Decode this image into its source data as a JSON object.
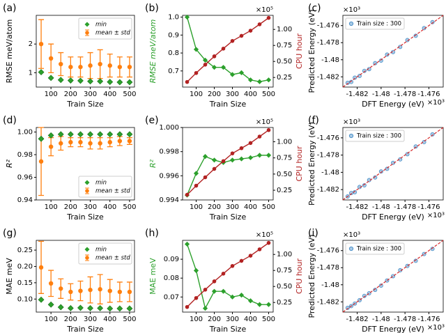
{
  "chart_data": [
    {
      "type": "errorbar",
      "panel_label": "(a)",
      "xlabel": "Train Size",
      "ylabel": "RMSE meV/atom",
      "x": [
        50,
        100,
        150,
        200,
        250,
        300,
        350,
        400,
        450,
        500
      ],
      "xlim": [
        25,
        525
      ],
      "xticks": [
        100,
        200,
        300,
        400,
        500
      ],
      "ylim": [
        0.5,
        3.0
      ],
      "yticks": [
        1,
        2
      ],
      "legend": "upper right",
      "series": [
        {
          "name": "min",
          "color": "#2ca02c",
          "values": [
            1.02,
            0.82,
            0.75,
            0.73,
            0.72,
            0.7,
            0.7,
            0.68,
            0.67,
            0.67
          ]
        },
        {
          "name": "mean ± std",
          "color": "#ff7f0e",
          "values": [
            2.0,
            1.5,
            1.3,
            1.2,
            1.2,
            1.25,
            1.3,
            1.25,
            1.2,
            1.2
          ],
          "errors": [
            0.85,
            0.5,
            0.4,
            0.35,
            0.35,
            0.45,
            0.5,
            0.4,
            0.35,
            0.35
          ]
        }
      ]
    },
    {
      "type": "dual_line",
      "panel_label": "(b)",
      "xlabel": "Train Size",
      "ylabel": "RMSE meV/atom",
      "y2label": "CPU hour",
      "y2_offset_label": "×10⁵",
      "x": [
        50,
        100,
        150,
        200,
        250,
        300,
        350,
        400,
        450,
        500
      ],
      "xlim": [
        25,
        525
      ],
      "xticks": [
        100,
        200,
        300,
        400,
        500
      ],
      "ylim": [
        0.61,
        1.01
      ],
      "yticks": [
        0.7,
        0.8,
        0.9,
        {
          "value": 1.0,
          "label": "1.0"
        }
      ],
      "y2lim": [
        0.1,
        1.22
      ],
      "y2ticks": [
        0.25,
        {
          "value": 0.5,
          "label": "0.50"
        },
        0.75,
        {
          "value": 1.0,
          "label": "1.00"
        }
      ],
      "series": [
        {
          "color": "#2ca02c",
          "values": [
            1.0,
            0.82,
            0.76,
            0.72,
            0.72,
            0.68,
            0.69,
            0.65,
            0.64,
            0.65
          ]
        },
        {
          "color": "#b22222",
          "axis": "y2",
          "values": [
            0.18,
            0.32,
            0.45,
            0.58,
            0.7,
            0.82,
            0.9,
            0.98,
            1.08,
            1.18
          ]
        }
      ]
    },
    {
      "type": "scatter",
      "panel_label": "(c)",
      "xlabel": "DFT Energy (eV)",
      "ylabel": "Predicted Energy (eV)",
      "x_offset_label": "×10³",
      "y_offset_label": "×10³",
      "xlim": [
        -1.4832,
        -1.4748
      ],
      "xticks": [
        -1.482,
        -1.48,
        -1.478,
        -1.476
      ],
      "ylim": [
        -1.4832,
        -1.4748
      ],
      "yticks": [
        -1.482,
        -1.48,
        -1.478,
        -1.476
      ],
      "legend": "upper left",
      "x": [
        -1.4828,
        -1.4825,
        -1.4822,
        -1.4818,
        -1.4814,
        -1.481,
        -1.4805,
        -1.48,
        -1.4795,
        -1.479,
        -1.4784,
        -1.4778,
        -1.4771,
        -1.4764,
        -1.4757
      ],
      "series": [
        {
          "name": "Train size : 300",
          "color": "#4b8fc7",
          "values": [
            -1.4827,
            -1.4826,
            -1.4821,
            -1.4819,
            -1.4813,
            -1.4811,
            -1.4804,
            -1.4801,
            -1.4794,
            -1.4791,
            -1.4785,
            -1.4777,
            -1.4772,
            -1.4763,
            -1.4756
          ]
        }
      ]
    },
    {
      "type": "errorbar",
      "panel_label": "(d)",
      "xlabel": "Train Size",
      "ylabel": "R²",
      "x": [
        50,
        100,
        150,
        200,
        250,
        300,
        350,
        400,
        450,
        500
      ],
      "xlim": [
        25,
        525
      ],
      "xticks": [
        100,
        200,
        300,
        400,
        500
      ],
      "ylim": [
        0.94,
        1.004
      ],
      "yticks": [
        0.94,
        0.96,
        0.98,
        {
          "value": 1.0,
          "label": "1.00"
        }
      ],
      "legend": "lower right",
      "series": [
        {
          "name": "min",
          "color": "#2ca02c",
          "values": [
            0.994,
            0.997,
            0.998,
            0.998,
            0.998,
            0.998,
            0.998,
            0.998,
            0.998,
            0.998
          ]
        },
        {
          "name": "mean ± std",
          "color": "#ff7f0e",
          "values": [
            0.974,
            0.987,
            0.99,
            0.991,
            0.991,
            0.99,
            0.99,
            0.991,
            0.992,
            0.992
          ],
          "errors": [
            0.03,
            0.008,
            0.006,
            0.004,
            0.004,
            0.005,
            0.005,
            0.004,
            0.004,
            0.003
          ]
        }
      ]
    },
    {
      "type": "dual_line",
      "panel_label": "(e)",
      "xlabel": "Train Size",
      "ylabel": "R²",
      "y2label": "CPU hour",
      "y2_offset_label": "×10⁵",
      "x": [
        50,
        100,
        150,
        200,
        250,
        300,
        350,
        400,
        450,
        500
      ],
      "xlim": [
        25,
        525
      ],
      "xticks": [
        100,
        200,
        300,
        400,
        500
      ],
      "ylim": [
        0.994,
        1.0
      ],
      "yticks": [
        0.994,
        0.996,
        0.998,
        {
          "value": 1.0,
          "label": "1.000"
        }
      ],
      "y2lim": [
        0.1,
        1.22
      ],
      "y2ticks": [
        0.25,
        {
          "value": 0.5,
          "label": "0.50"
        },
        0.75,
        {
          "value": 1.0,
          "label": "1.00"
        }
      ],
      "series": [
        {
          "color": "#2ca02c",
          "values": [
            0.9944,
            0.9962,
            0.9976,
            0.9973,
            0.9971,
            0.9973,
            0.9974,
            0.9975,
            0.9977,
            0.9977
          ]
        },
        {
          "color": "#b22222",
          "axis": "y2",
          "values": [
            0.18,
            0.32,
            0.45,
            0.58,
            0.7,
            0.82,
            0.9,
            0.98,
            1.08,
            1.18
          ]
        }
      ]
    },
    {
      "type": "scatter",
      "panel_label": "(f)",
      "xlabel": "DFT Energy (eV)",
      "ylabel": "Predicted Energy (eV)",
      "x_offset_label": "×10³",
      "y_offset_label": "×10³",
      "xlim": [
        -1.4832,
        -1.4748
      ],
      "xticks": [
        -1.482,
        -1.48,
        -1.478,
        -1.476
      ],
      "ylim": [
        -1.4832,
        -1.4748
      ],
      "yticks": [
        -1.482,
        -1.48,
        -1.478,
        -1.476
      ],
      "legend": "upper left",
      "x": [
        -1.4828,
        -1.4825,
        -1.4822,
        -1.4818,
        -1.4814,
        -1.481,
        -1.4805,
        -1.48,
        -1.4795,
        -1.479,
        -1.4784,
        -1.4778,
        -1.4771,
        -1.4764,
        -1.4757
      ],
      "series": [
        {
          "name": "Train size : 300",
          "color": "#4b8fc7",
          "values": [
            -1.4828,
            -1.4824,
            -1.4823,
            -1.4817,
            -1.4815,
            -1.4809,
            -1.4806,
            -1.4799,
            -1.4796,
            -1.4789,
            -1.4785,
            -1.4779,
            -1.477,
            -1.4765,
            -1.4756
          ]
        }
      ]
    },
    {
      "type": "errorbar",
      "panel_label": "(g)",
      "xlabel": "Train Size",
      "ylabel": "MAE meV",
      "x": [
        50,
        100,
        150,
        200,
        250,
        300,
        350,
        400,
        450,
        500
      ],
      "xlim": [
        25,
        525
      ],
      "xticks": [
        100,
        200,
        300,
        400,
        500
      ],
      "ylim": [
        0.06,
        0.28
      ],
      "yticks": [
        {
          "value": 0.1,
          "label": "0.10"
        },
        0.15,
        {
          "value": 0.2,
          "label": "0.20"
        },
        0.25
      ],
      "legend": "upper right",
      "series": [
        {
          "name": "min",
          "color": "#2ca02c",
          "values": [
            0.098,
            0.083,
            0.075,
            0.072,
            0.073,
            0.072,
            0.072,
            0.071,
            0.071,
            0.071
          ]
        },
        {
          "name": "mean ± std",
          "color": "#ff7f0e",
          "values": [
            0.197,
            0.148,
            0.132,
            0.122,
            0.125,
            0.128,
            0.13,
            0.125,
            0.122,
            0.122
          ],
          "errors": [
            0.08,
            0.04,
            0.03,
            0.025,
            0.03,
            0.04,
            0.045,
            0.035,
            0.03,
            0.03
          ]
        }
      ]
    },
    {
      "type": "dual_line",
      "panel_label": "(h)",
      "xlabel": "Train Size",
      "ylabel": "MAE meV",
      "y2label": "CPU hour",
      "y2_offset_label": "×10⁵",
      "x": [
        50,
        100,
        150,
        200,
        250,
        300,
        350,
        400,
        450,
        500
      ],
      "xlim": [
        25,
        525
      ],
      "xticks": [
        100,
        200,
        300,
        400,
        500
      ],
      "ylim": [
        0.062,
        0.1
      ],
      "yticks": [
        0.07,
        0.08,
        0.09
      ],
      "y2lim": [
        0.1,
        1.22
      ],
      "y2ticks": [
        0.25,
        {
          "value": 0.5,
          "label": "0.50"
        },
        0.75,
        {
          "value": 1.0,
          "label": "1.00"
        }
      ],
      "series": [
        {
          "color": "#2ca02c",
          "values": [
            0.098,
            0.084,
            0.064,
            0.073,
            0.073,
            0.07,
            0.071,
            0.068,
            0.066,
            0.066
          ]
        },
        {
          "color": "#b22222",
          "axis": "y2",
          "values": [
            0.18,
            0.32,
            0.45,
            0.58,
            0.7,
            0.82,
            0.9,
            0.98,
            1.08,
            1.18
          ]
        }
      ]
    },
    {
      "type": "scatter",
      "panel_label": "(i)",
      "xlabel": "DFT Energy (eV)",
      "ylabel": "Predicted Energy (eV)",
      "x_offset_label": "×10³",
      "y_offset_label": "×10³",
      "xlim": [
        -1.4832,
        -1.4748
      ],
      "xticks": [
        -1.482,
        -1.48,
        -1.478,
        -1.476
      ],
      "ylim": [
        -1.4832,
        -1.4748
      ],
      "yticks": [
        -1.482,
        -1.48,
        -1.478,
        -1.476
      ],
      "legend": "upper left",
      "x": [
        -1.4828,
        -1.4825,
        -1.4822,
        -1.4818,
        -1.4814,
        -1.481,
        -1.4805,
        -1.48,
        -1.4795,
        -1.479,
        -1.4784,
        -1.4778,
        -1.4771,
        -1.4764,
        -1.4757
      ],
      "series": [
        {
          "name": "Train size : 300",
          "color": "#4b8fc7",
          "values": [
            -1.4827,
            -1.4825,
            -1.4822,
            -1.4818,
            -1.4813,
            -1.481,
            -1.4806,
            -1.4801,
            -1.4795,
            -1.479,
            -1.4783,
            -1.4778,
            -1.4772,
            -1.4764,
            -1.4758
          ]
        }
      ]
    }
  ]
}
